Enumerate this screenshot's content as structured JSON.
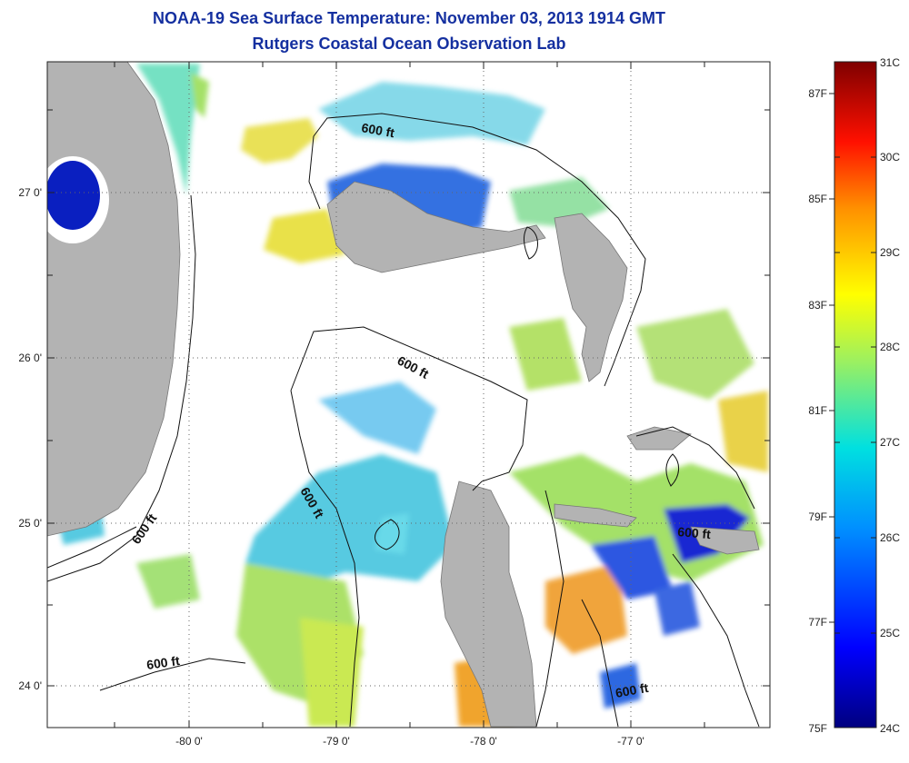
{
  "title": "NOAA-19 Sea Surface Temperature:  November 03, 2013 1914 GMT",
  "subtitle": "Rutgers Coastal Ocean Observation Lab",
  "map": {
    "x_ticks": [
      "-80 0'",
      "-79 0'",
      "-78 0'",
      "-77 0'"
    ],
    "y_ticks": [
      "27 0'",
      "26 0'",
      "25 0'",
      "24 0'"
    ],
    "contour_label": "600 ft",
    "contour_labels": [
      "600 ft",
      "600 ft",
      "600 ft",
      "600 ft",
      "600 ft",
      "600 ft"
    ]
  },
  "colorbar": {
    "celsius": [
      "31C",
      "30C",
      "29C",
      "28C",
      "27C",
      "26C",
      "25C",
      "24C"
    ],
    "fahrenheit": [
      "87F",
      "85F",
      "83F",
      "81F",
      "79F",
      "77F",
      "75F"
    ]
  },
  "colors": {
    "land": "#b3b3b3",
    "title": "#1530a0"
  }
}
